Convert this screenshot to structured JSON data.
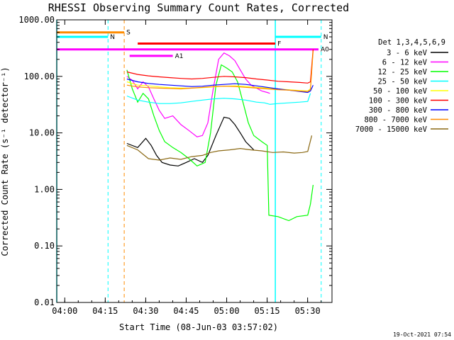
{
  "chart_data": {
    "type": "line",
    "title": "RHESSI Observing Summary Count Rates, Corrected",
    "xlabel": "Start Time (08-Jun-03 03:57:02)",
    "ylabel": "Corrected Count Rate (s⁻¹ detector⁻¹)",
    "yscale": "log",
    "ylim": [
      0.01,
      1000
    ],
    "xlim_minutes": [
      0,
      102
    ],
    "x_ticks": [
      {
        "label": "04:00",
        "minute": 2.97
      },
      {
        "label": "04:15",
        "minute": 17.97
      },
      {
        "label": "04:30",
        "minute": 32.97
      },
      {
        "label": "04:45",
        "minute": 47.97
      },
      {
        "label": "05:00",
        "minute": 62.97
      },
      {
        "label": "05:15",
        "minute": 77.97
      },
      {
        "label": "05:30",
        "minute": 92.97
      }
    ],
    "y_ticks": [
      {
        "label": "1000.00",
        "value": 1000
      },
      {
        "label": "100.00",
        "value": 100
      },
      {
        "label": "10.00",
        "value": 10
      },
      {
        "label": "1.00",
        "value": 1
      },
      {
        "label": "0.10",
        "value": 0.1
      },
      {
        "label": "0.01",
        "value": 0.01
      }
    ],
    "legend_title": "Det 1,3,4,5,6,9",
    "legend_position": "right",
    "series": [
      {
        "name": "3 - 6 keV",
        "color": "#000000",
        "points": [
          [
            26,
            6.5
          ],
          [
            30,
            5.5
          ],
          [
            33,
            8
          ],
          [
            35,
            6
          ],
          [
            37,
            4
          ],
          [
            39,
            3
          ],
          [
            42,
            2.7
          ],
          [
            45,
            2.6
          ],
          [
            48,
            3
          ],
          [
            51,
            3.5
          ],
          [
            54,
            3
          ],
          [
            56,
            4
          ],
          [
            59,
            9
          ],
          [
            62,
            19
          ],
          [
            64,
            18
          ],
          [
            66,
            14
          ],
          [
            68,
            10
          ],
          [
            70,
            7
          ],
          [
            73,
            5
          ]
        ]
      },
      {
        "name": "6 - 12 keV",
        "color": "#ff00ff",
        "points": [
          [
            26,
            100
          ],
          [
            28,
            85
          ],
          [
            30,
            60
          ],
          [
            32,
            80
          ],
          [
            34,
            65
          ],
          [
            36,
            40
          ],
          [
            38,
            25
          ],
          [
            40,
            18
          ],
          [
            43,
            20
          ],
          [
            46,
            14
          ],
          [
            49,
            11
          ],
          [
            52,
            8.5
          ],
          [
            54,
            9
          ],
          [
            56,
            15
          ],
          [
            58,
            60
          ],
          [
            60,
            200
          ],
          [
            62,
            260
          ],
          [
            64,
            230
          ],
          [
            66,
            190
          ],
          [
            68,
            130
          ],
          [
            70,
            90
          ],
          [
            72,
            70
          ],
          [
            76,
            55
          ],
          [
            78,
            52
          ],
          [
            79,
            50
          ]
        ]
      },
      {
        "name": "12 - 25 keV",
        "color": "#00ff00",
        "points": [
          [
            26,
            130
          ],
          [
            28,
            60
          ],
          [
            30,
            35
          ],
          [
            32,
            50
          ],
          [
            34,
            40
          ],
          [
            36,
            20
          ],
          [
            38,
            11
          ],
          [
            40,
            7
          ],
          [
            43,
            5.5
          ],
          [
            46,
            4.5
          ],
          [
            49,
            3.5
          ],
          [
            52,
            2.6
          ],
          [
            55,
            3
          ],
          [
            57,
            10
          ],
          [
            59,
            70
          ],
          [
            61,
            160
          ],
          [
            63,
            140
          ],
          [
            65,
            120
          ],
          [
            67,
            80
          ],
          [
            69,
            35
          ],
          [
            71,
            15
          ],
          [
            73,
            9
          ],
          [
            76,
            7
          ],
          [
            78,
            6
          ],
          [
            78.6,
            0.35
          ],
          [
            82,
            0.33
          ],
          [
            86,
            0.28
          ],
          [
            89,
            0.33
          ],
          [
            93,
            0.35
          ],
          [
            94,
            0.55
          ],
          [
            95,
            1.2
          ]
        ]
      },
      {
        "name": "25 - 50 keV",
        "color": "#00ffff",
        "points": [
          [
            26,
            45
          ],
          [
            30,
            38
          ],
          [
            34,
            35
          ],
          [
            38,
            33
          ],
          [
            42,
            33
          ],
          [
            46,
            34
          ],
          [
            50,
            36
          ],
          [
            54,
            38
          ],
          [
            58,
            40
          ],
          [
            62,
            41
          ],
          [
            66,
            40
          ],
          [
            70,
            38
          ],
          [
            74,
            35
          ],
          [
            77,
            34
          ],
          [
            79,
            32
          ],
          [
            82,
            33
          ],
          [
            86,
            34
          ],
          [
            90,
            35
          ],
          [
            93,
            36
          ],
          [
            94,
            50
          ]
        ]
      },
      {
        "name": "50 - 100 keV",
        "color": "#ffff00",
        "points": [
          [
            26,
            80
          ],
          [
            30,
            70
          ],
          [
            34,
            68
          ],
          [
            38,
            65
          ],
          [
            42,
            63
          ],
          [
            46,
            62
          ],
          [
            50,
            62
          ],
          [
            54,
            63
          ],
          [
            58,
            65
          ],
          [
            62,
            67
          ],
          [
            66,
            68
          ],
          [
            70,
            66
          ],
          [
            74,
            64
          ],
          [
            78,
            62
          ],
          [
            82,
            60
          ],
          [
            86,
            58
          ],
          [
            90,
            56
          ],
          [
            93,
            55
          ],
          [
            94,
            60
          ],
          [
            95,
            300
          ]
        ]
      },
      {
        "name": "100 - 300 keV",
        "color": "#ff0000",
        "points": [
          [
            26,
            120
          ],
          [
            30,
            108
          ],
          [
            34,
            102
          ],
          [
            38,
            98
          ],
          [
            42,
            95
          ],
          [
            46,
            92
          ],
          [
            50,
            90
          ],
          [
            54,
            92
          ],
          [
            58,
            96
          ],
          [
            62,
            100
          ],
          [
            66,
            98
          ],
          [
            70,
            95
          ],
          [
            74,
            90
          ],
          [
            78,
            86
          ],
          [
            82,
            82
          ],
          [
            86,
            80
          ],
          [
            90,
            78
          ],
          [
            93,
            76
          ],
          [
            94,
            80
          ],
          [
            95,
            300
          ]
        ]
      },
      {
        "name": "300 - 800 keV",
        "color": "#0000ff",
        "points": [
          [
            26,
            90
          ],
          [
            30,
            80
          ],
          [
            34,
            75
          ],
          [
            38,
            72
          ],
          [
            42,
            70
          ],
          [
            46,
            68
          ],
          [
            50,
            66
          ],
          [
            54,
            67
          ],
          [
            58,
            70
          ],
          [
            62,
            72
          ],
          [
            66,
            74
          ],
          [
            70,
            72
          ],
          [
            74,
            68
          ],
          [
            78,
            64
          ],
          [
            82,
            60
          ],
          [
            86,
            57
          ],
          [
            90,
            54
          ],
          [
            93,
            52
          ],
          [
            94,
            55
          ],
          [
            95,
            70
          ]
        ]
      },
      {
        "name": "800 - 7000 keV",
        "color": "#ff8c00",
        "points": [
          [
            26,
            70
          ],
          [
            30,
            65
          ],
          [
            34,
            63
          ],
          [
            38,
            62
          ],
          [
            42,
            61
          ],
          [
            46,
            60
          ],
          [
            50,
            62
          ],
          [
            54,
            64
          ],
          [
            58,
            66
          ],
          [
            62,
            67
          ],
          [
            66,
            66
          ],
          [
            70,
            64
          ],
          [
            74,
            62
          ],
          [
            78,
            60
          ],
          [
            82,
            58
          ],
          [
            86,
            57
          ],
          [
            90,
            55
          ],
          [
            93,
            54
          ],
          [
            94,
            58
          ],
          [
            95,
            280
          ]
        ]
      },
      {
        "name": "7000 - 15000 keV",
        "color": "#8b6914",
        "points": [
          [
            26,
            6
          ],
          [
            30,
            5
          ],
          [
            34,
            3.5
          ],
          [
            38,
            3.3
          ],
          [
            42,
            3.6
          ],
          [
            46,
            3.4
          ],
          [
            50,
            3.8
          ],
          [
            54,
            4
          ],
          [
            57,
            4.5
          ],
          [
            60,
            4.8
          ],
          [
            64,
            5
          ],
          [
            68,
            5.3
          ],
          [
            72,
            5
          ],
          [
            76,
            4.8
          ],
          [
            80,
            4.5
          ],
          [
            84,
            4.6
          ],
          [
            88,
            4.4
          ],
          [
            91,
            4.5
          ],
          [
            93,
            4.7
          ],
          [
            94.5,
            9
          ]
        ]
      }
    ],
    "flag_bars": [
      {
        "label": "S",
        "color": "#ff8c00",
        "level": 600,
        "start": 0,
        "end": 25
      },
      {
        "label": "N",
        "color": "#00ffff",
        "level": 500,
        "start": 0,
        "end": 19
      },
      {
        "label": "N",
        "color": "#00ffff",
        "level": 500,
        "start": 81,
        "end": 98
      },
      {
        "label": "F",
        "color": "#ff0000",
        "level": 380,
        "start": 30,
        "end": 81
      },
      {
        "label": "A0",
        "color": "#ff00ff",
        "level": 300,
        "start": 0,
        "end": 97
      },
      {
        "label": "A1",
        "color": "#ff00ff",
        "level": 230,
        "start": 27,
        "end": 43
      }
    ],
    "vertical_markers": [
      {
        "style": "solid",
        "color": "#00ffff",
        "minute": 0
      },
      {
        "style": "dashed",
        "color": "#00ffff",
        "minute": 19
      },
      {
        "style": "dashed",
        "color": "#ff8c00",
        "minute": 25
      },
      {
        "style": "solid",
        "color": "#00ffff",
        "minute": 81
      },
      {
        "style": "dashed",
        "color": "#00ffff",
        "minute": 98
      }
    ]
  },
  "footer_timestamp": "19-Oct-2021 07:54"
}
